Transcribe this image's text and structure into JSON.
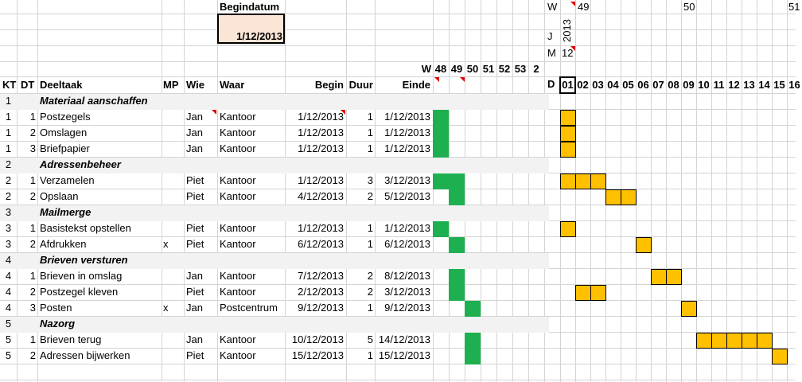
{
  "header": {
    "start_label": "Begindatum",
    "start_value": "1/12/2013",
    "w_label": "W",
    "j_label": "J",
    "m_label": "M",
    "d_label": "D",
    "week_49": "49",
    "week_50": "50",
    "week_51": "51",
    "year": "2013",
    "month": "12"
  },
  "week_row": {
    "label": "W",
    "weeks": [
      "48",
      "49",
      "50",
      "51",
      "52",
      "53",
      "2"
    ]
  },
  "columns": {
    "kt": "KT",
    "dt": "DT",
    "task": "Deeltaak",
    "mp": "MP",
    "who": "Wie",
    "where": "Waar",
    "begin": "Begin",
    "duration": "Duur",
    "end": "Einde"
  },
  "days": [
    "01",
    "02",
    "03",
    "04",
    "05",
    "06",
    "07",
    "08",
    "09",
    "10",
    "11",
    "12",
    "13",
    "14",
    "15",
    "16"
  ],
  "rows": [
    {
      "kt": "1",
      "dt": "",
      "task": "Materiaal aanschaffen",
      "group": true,
      "mp": "",
      "who": "",
      "where": "",
      "begin": "",
      "dur": "",
      "end": ""
    },
    {
      "kt": "1",
      "dt": "1",
      "task": "Postzegels",
      "group": false,
      "mp": "",
      "who": "Jan",
      "where": "Kantoor",
      "begin": "1/12/2013",
      "dur": "1",
      "end": "1/12/2013"
    },
    {
      "kt": "1",
      "dt": "2",
      "task": "Omslagen",
      "group": false,
      "mp": "",
      "who": "Jan",
      "where": "Kantoor",
      "begin": "1/12/2013",
      "dur": "1",
      "end": "1/12/2013"
    },
    {
      "kt": "1",
      "dt": "3",
      "task": "Briefpapier",
      "group": false,
      "mp": "",
      "who": "Jan",
      "where": "Kantoor",
      "begin": "1/12/2013",
      "dur": "1",
      "end": "1/12/2013"
    },
    {
      "kt": "2",
      "dt": "",
      "task": "Adressenbeheer",
      "group": true,
      "mp": "",
      "who": "",
      "where": "",
      "begin": "",
      "dur": "",
      "end": ""
    },
    {
      "kt": "2",
      "dt": "1",
      "task": "Verzamelen",
      "group": false,
      "mp": "",
      "who": "Piet",
      "where": "Kantoor",
      "begin": "1/12/2013",
      "dur": "3",
      "end": "3/12/2013"
    },
    {
      "kt": "2",
      "dt": "2",
      "task": "Opslaan",
      "group": false,
      "mp": "",
      "who": "Piet",
      "where": "Kantoor",
      "begin": "4/12/2013",
      "dur": "2",
      "end": "5/12/2013"
    },
    {
      "kt": "3",
      "dt": "",
      "task": "Mailmerge",
      "group": true,
      "mp": "",
      "who": "",
      "where": "",
      "begin": "",
      "dur": "",
      "end": ""
    },
    {
      "kt": "3",
      "dt": "1",
      "task": "Basistekst opstellen",
      "group": false,
      "mp": "",
      "who": "Piet",
      "where": "Kantoor",
      "begin": "1/12/2013",
      "dur": "1",
      "end": "1/12/2013"
    },
    {
      "kt": "3",
      "dt": "2",
      "task": "Afdrukken",
      "group": false,
      "mp": "x",
      "who": "Piet",
      "where": "Kantoor",
      "begin": "6/12/2013",
      "dur": "1",
      "end": "6/12/2013"
    },
    {
      "kt": "4",
      "dt": "",
      "task": "Brieven versturen",
      "group": true,
      "mp": "",
      "who": "",
      "where": "",
      "begin": "",
      "dur": "",
      "end": ""
    },
    {
      "kt": "4",
      "dt": "1",
      "task": "Brieven in omslag",
      "group": false,
      "mp": "",
      "who": "Jan",
      "where": "Kantoor",
      "begin": "7/12/2013",
      "dur": "2",
      "end": "8/12/2013"
    },
    {
      "kt": "4",
      "dt": "2",
      "task": "Postzegel kleven",
      "group": false,
      "mp": "",
      "who": "Piet",
      "where": "Kantoor",
      "begin": "2/12/2013",
      "dur": "2",
      "end": "3/12/2013"
    },
    {
      "kt": "4",
      "dt": "3",
      "task": "Posten",
      "group": false,
      "mp": "x",
      "who": "Jan",
      "where": "Postcentrum",
      "begin": "9/12/2013",
      "dur": "1",
      "end": "9/12/2013"
    },
    {
      "kt": "5",
      "dt": "",
      "task": "Nazorg",
      "group": true,
      "mp": "",
      "who": "",
      "where": "",
      "begin": "",
      "dur": "",
      "end": ""
    },
    {
      "kt": "5",
      "dt": "1",
      "task": "Brieven terug",
      "group": false,
      "mp": "",
      "who": "Jan",
      "where": "Kantoor",
      "begin": "10/12/2013",
      "dur": "5",
      "end": "14/12/2013"
    },
    {
      "kt": "5",
      "dt": "2",
      "task": "Adressen bijwerken",
      "group": false,
      "mp": "",
      "who": "Piet",
      "where": "Kantoor",
      "begin": "15/12/2013",
      "dur": "1",
      "end": "15/12/2013"
    }
  ],
  "colors": {
    "week_bar": "#1eb050",
    "day_bar": "#ffc000",
    "group_row": "#f2f2f2",
    "start_fill": "#fbe5d6"
  }
}
